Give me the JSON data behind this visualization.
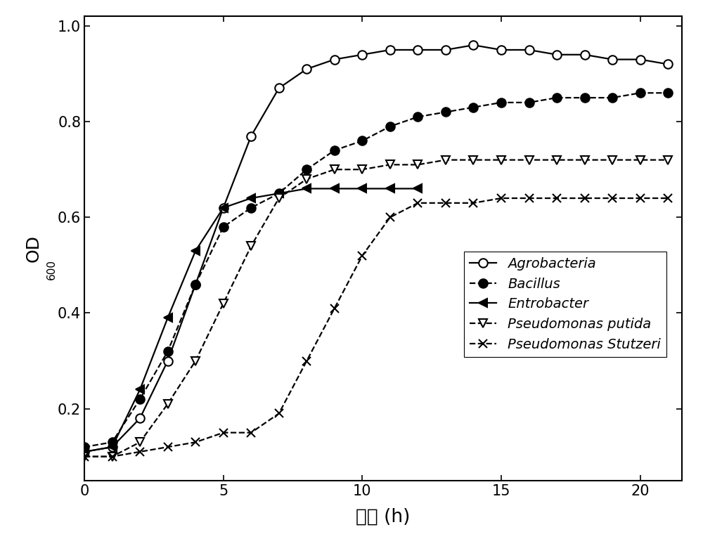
{
  "xlabel": "时间 (h)",
  "xlim": [
    0,
    21.5
  ],
  "ylim": [
    0.05,
    1.02
  ],
  "xticks": [
    0,
    5,
    10,
    15,
    20
  ],
  "yticks": [
    0.2,
    0.4,
    0.6,
    0.8,
    1.0
  ],
  "series": [
    {
      "label": "Agrobacteria",
      "style": "solid",
      "marker": "o",
      "marker_fill": "white",
      "color": "black",
      "x": [
        0,
        1,
        2,
        3,
        4,
        5,
        6,
        7,
        8,
        9,
        10,
        11,
        12,
        13,
        14,
        15,
        16,
        17,
        18,
        19,
        20,
        21
      ],
      "y": [
        0.11,
        0.12,
        0.18,
        0.3,
        0.46,
        0.62,
        0.77,
        0.87,
        0.91,
        0.93,
        0.94,
        0.95,
        0.95,
        0.95,
        0.96,
        0.95,
        0.95,
        0.94,
        0.94,
        0.93,
        0.93,
        0.92
      ]
    },
    {
      "label": "Bacillus",
      "style": "dashed",
      "marker": "o",
      "marker_fill": "black",
      "color": "black",
      "x": [
        0,
        1,
        2,
        3,
        4,
        5,
        6,
        7,
        8,
        9,
        10,
        11,
        12,
        13,
        14,
        15,
        16,
        17,
        18,
        19,
        20,
        21
      ],
      "y": [
        0.12,
        0.13,
        0.22,
        0.32,
        0.46,
        0.58,
        0.62,
        0.65,
        0.7,
        0.74,
        0.76,
        0.79,
        0.81,
        0.82,
        0.83,
        0.84,
        0.84,
        0.85,
        0.85,
        0.85,
        0.86,
        0.86
      ]
    },
    {
      "label": "Entrobacter",
      "style": "solid",
      "marker": "triangle_left",
      "marker_fill": "black",
      "color": "black",
      "x": [
        0,
        1,
        2,
        3,
        4,
        5,
        6,
        7,
        8,
        9,
        10,
        11,
        12
      ],
      "y": [
        0.11,
        0.12,
        0.24,
        0.39,
        0.53,
        0.62,
        0.64,
        0.65,
        0.66,
        0.66,
        0.66,
        0.66,
        0.66
      ]
    },
    {
      "label": "Pseudomonas putida",
      "style": "dashed",
      "marker": "triangle_down",
      "marker_fill": "white",
      "color": "black",
      "x": [
        0,
        1,
        2,
        3,
        4,
        5,
        6,
        7,
        8,
        9,
        10,
        11,
        12,
        13,
        14,
        15,
        16,
        17,
        18,
        19,
        20,
        21
      ],
      "y": [
        0.1,
        0.1,
        0.13,
        0.21,
        0.3,
        0.42,
        0.54,
        0.64,
        0.68,
        0.7,
        0.7,
        0.71,
        0.71,
        0.72,
        0.72,
        0.72,
        0.72,
        0.72,
        0.72,
        0.72,
        0.72,
        0.72
      ]
    },
    {
      "label": "Pseudomonas Stutzeri",
      "style": "dashed",
      "marker": "x",
      "marker_fill": "black",
      "color": "black",
      "x": [
        0,
        1,
        2,
        3,
        4,
        5,
        6,
        7,
        8,
        9,
        10,
        11,
        12,
        13,
        14,
        15,
        16,
        17,
        18,
        19,
        20,
        21
      ],
      "y": [
        0.1,
        0.1,
        0.11,
        0.12,
        0.13,
        0.15,
        0.15,
        0.19,
        0.3,
        0.41,
        0.52,
        0.6,
        0.63,
        0.63,
        0.63,
        0.64,
        0.64,
        0.64,
        0.64,
        0.64,
        0.64,
        0.64
      ]
    }
  ],
  "marker_size": 9,
  "linewidth": 1.6,
  "tick_fontsize": 15,
  "legend_fontsize": 14
}
